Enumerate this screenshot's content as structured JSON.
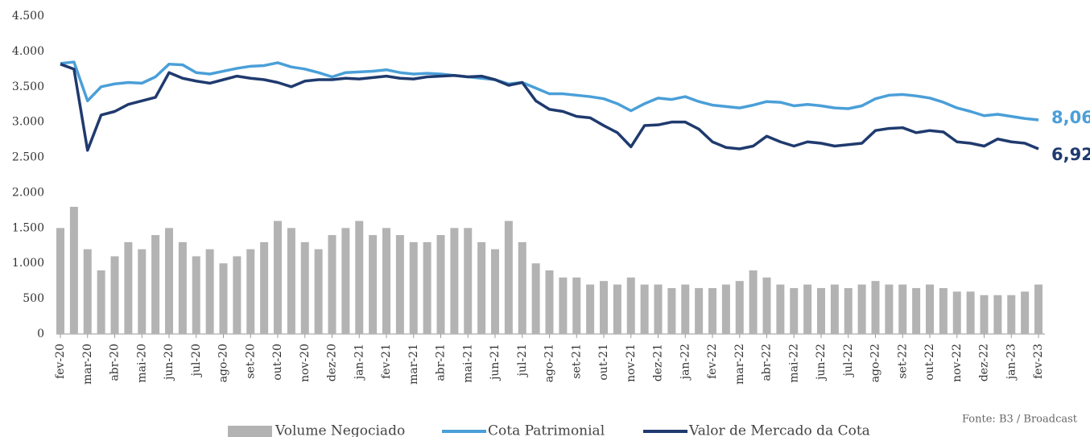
{
  "chart_data": {
    "type": "bar",
    "categories": [
      "fev-20",
      null,
      "mar-20",
      null,
      "abr-20",
      null,
      "mai-20",
      null,
      "jun-20",
      null,
      "jul-20",
      null,
      "ago-20",
      null,
      "set-20",
      null,
      "out-20",
      null,
      "nov-20",
      null,
      "dez-20",
      null,
      "jan-21",
      null,
      "fev-21",
      null,
      "mar-21",
      null,
      "abr-21",
      null,
      "mai-21",
      null,
      "jun-21",
      null,
      "jul-21",
      null,
      "ago-21",
      null,
      "set-21",
      null,
      "out-21",
      null,
      "nov-21",
      null,
      "dez-21",
      null,
      "jan-22",
      null,
      "fev-22",
      null,
      "mar-22",
      null,
      "abr-22",
      null,
      "mai-22",
      null,
      "jun-22",
      null,
      "jul-22",
      null,
      "ago-22",
      null,
      "set-22",
      null,
      "out-22",
      null,
      "nov-22",
      null,
      "dez-22",
      null,
      "jan-23",
      null,
      "fev-23"
    ],
    "series": [
      {
        "name": "Volume Negociado",
        "type": "bar",
        "color": "#b3b3b3",
        "values": [
          1500,
          1800,
          1200,
          900,
          1100,
          1300,
          1200,
          1400,
          1500,
          1300,
          1100,
          1200,
          1000,
          1100,
          1200,
          1300,
          1600,
          1500,
          1300,
          1200,
          1400,
          1500,
          1600,
          1400,
          1500,
          1400,
          1300,
          1300,
          1400,
          1500,
          1500,
          1300,
          1200,
          1600,
          1300,
          1000,
          900,
          800,
          800,
          700,
          750,
          700,
          800,
          700,
          700,
          650,
          700,
          650,
          650,
          700,
          750,
          900,
          800,
          700,
          650,
          700,
          650,
          700,
          650,
          700,
          750,
          700,
          700,
          650,
          700,
          650,
          600,
          600,
          550,
          550,
          550,
          600,
          700
        ]
      },
      {
        "name": "Cota Patrimonial",
        "type": "line",
        "color": "#4a9fd8",
        "values": [
          3830,
          3850,
          3300,
          3500,
          3540,
          3560,
          3550,
          3640,
          3820,
          3810,
          3700,
          3680,
          3720,
          3760,
          3790,
          3800,
          3840,
          3780,
          3750,
          3700,
          3640,
          3700,
          3710,
          3720,
          3740,
          3700,
          3680,
          3690,
          3680,
          3660,
          3640,
          3620,
          3600,
          3540,
          3560,
          3480,
          3400,
          3400,
          3380,
          3360,
          3330,
          3260,
          3160,
          3260,
          3340,
          3320,
          3360,
          3290,
          3240,
          3220,
          3200,
          3240,
          3290,
          3280,
          3230,
          3250,
          3230,
          3200,
          3190,
          3230,
          3330,
          3380,
          3390,
          3370,
          3340,
          3280,
          3200,
          3150,
          3090,
          3110,
          3080,
          3050,
          3030
        ]
      },
      {
        "name": "Valor de Mercado da Cota",
        "type": "line",
        "color": "#1f3a6e",
        "values": [
          3820,
          3750,
          2600,
          3100,
          3150,
          3250,
          3300,
          3350,
          3700,
          3620,
          3580,
          3550,
          3600,
          3650,
          3620,
          3600,
          3560,
          3500,
          3580,
          3600,
          3600,
          3620,
          3610,
          3630,
          3650,
          3620,
          3610,
          3640,
          3650,
          3660,
          3640,
          3650,
          3600,
          3520,
          3560,
          3300,
          3180,
          3150,
          3080,
          3060,
          2950,
          2850,
          2650,
          2950,
          2960,
          3000,
          3000,
          2900,
          2720,
          2640,
          2620,
          2660,
          2800,
          2720,
          2660,
          2720,
          2700,
          2660,
          2680,
          2700,
          2880,
          2910,
          2920,
          2850,
          2880,
          2860,
          2720,
          2700,
          2660,
          2760,
          2720,
          2700,
          2620
        ]
      }
    ],
    "ylim": [
      0,
      4500
    ],
    "yticks": [
      0,
      500,
      {
        "value": 1000,
        "label": "1.000"
      },
      {
        "value": 1500,
        "label": "1.500"
      },
      {
        "value": 2000,
        "label": "2.000"
      },
      {
        "value": 2500,
        "label": "2.500"
      },
      {
        "value": 3000,
        "label": "3.000"
      },
      {
        "value": 3500,
        "label": "3.500"
      },
      {
        "value": 4000,
        "label": "4.000"
      },
      {
        "value": 4500,
        "label": "4.500"
      }
    ],
    "annotations": [
      {
        "text": "8,06",
        "color": "#4a9fd8"
      },
      {
        "text": "6,92",
        "color": "#1f3a6e"
      }
    ],
    "source": "Fonte: B3 / Broadcast"
  }
}
